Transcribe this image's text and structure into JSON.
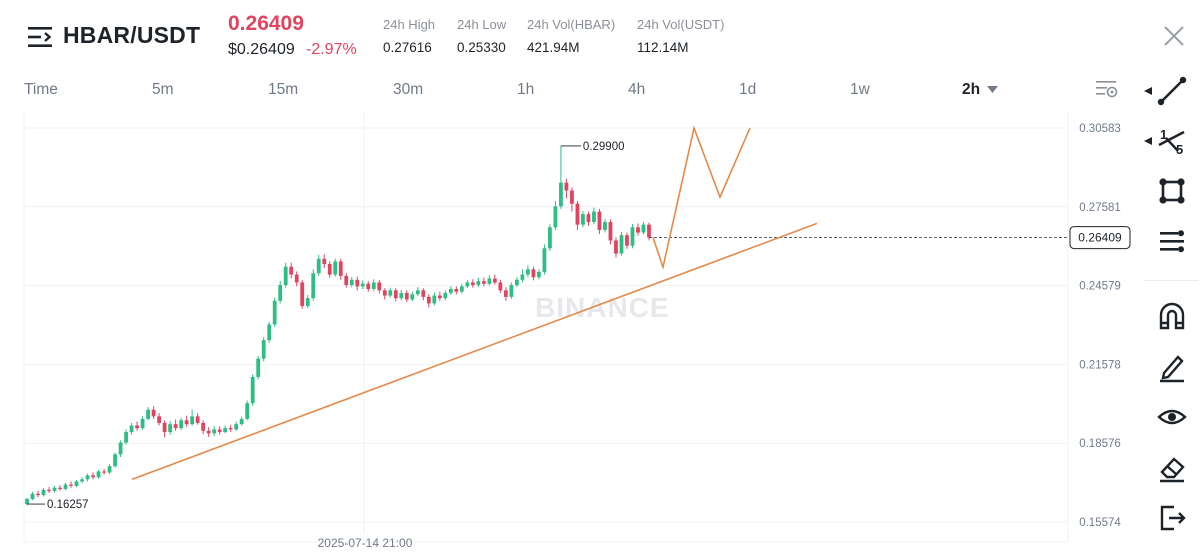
{
  "header": {
    "menu_icon": "menu-collapse-icon",
    "pair": "HBAR/USDT",
    "last_price": "0.26409",
    "usd_price": "$0.26409",
    "change_pct": "-2.97%",
    "stats": [
      {
        "label": "24h High",
        "value": "0.27616"
      },
      {
        "label": "24h Low",
        "value": "0.25330"
      },
      {
        "label": "24h Vol(HBAR)",
        "value": "421.94M"
      },
      {
        "label": "24h Vol(USDT)",
        "value": "112.14M"
      }
    ],
    "close_icon": "close-icon"
  },
  "timeframes": {
    "items": [
      "Time",
      "5m",
      "15m",
      "30m",
      "1h",
      "4h",
      "1d",
      "1w",
      "2h"
    ],
    "active": "2h",
    "settings_icon": "chart-settings-icon"
  },
  "chart": {
    "watermark": "BINANCE",
    "price_axis": [
      "0.30583",
      "0.27581",
      "0.24579",
      "0.21578",
      "0.18576",
      "0.15574"
    ],
    "current_price_label": "0.26409",
    "high_label": "0.29900",
    "low_label": "0.16257",
    "time_label": "2025-07-14 21:00",
    "colors": {
      "up": "#2ebd85",
      "down": "#e0445f",
      "trendline": "#e5894a",
      "grid": "#eff1f3"
    }
  },
  "toolbar": {
    "tools": [
      {
        "name": "trend-line-tool",
        "icon": "line-draw-icon"
      },
      {
        "name": "fib-tool",
        "icon": "fibonacci-icon"
      },
      {
        "name": "shape-tool",
        "icon": "rectangle-shape-icon"
      },
      {
        "name": "text-lines-tool",
        "icon": "text-lines-icon"
      },
      {
        "name": "magnet-tool",
        "icon": "magnet-icon"
      },
      {
        "name": "pen-tool",
        "icon": "pen-icon"
      },
      {
        "name": "visibility-tool",
        "icon": "eye-icon"
      },
      {
        "name": "eraser-tool",
        "icon": "eraser-icon"
      },
      {
        "name": "exit-tool",
        "icon": "exit-icon"
      }
    ]
  }
}
